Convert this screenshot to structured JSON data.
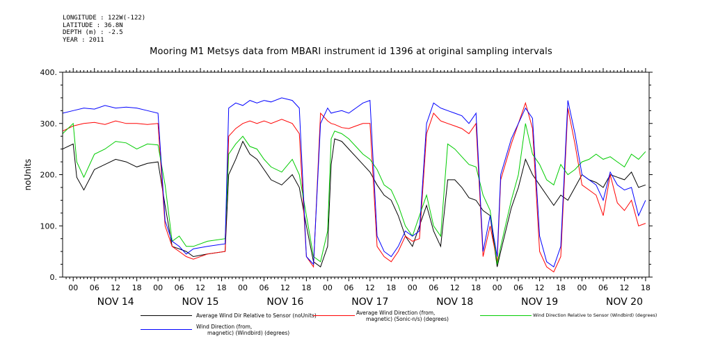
{
  "meta": {
    "longitude": "LONGITUDE : 122W(-122)",
    "latitude": "LATITUDE : 36.8N",
    "depth": "DEPTH (m) : -2.5",
    "year": "YEAR : 2011"
  },
  "chart_data": {
    "type": "line",
    "title": "Mooring M1 Metsys data from MBARI instrument id 1396 at original sampling intervals",
    "ylabel": "noUnits",
    "xlabel": "",
    "ylim": [
      0,
      400
    ],
    "yticks": [
      0,
      100,
      200,
      300,
      400
    ],
    "xlim_hours": [
      -3,
      163
    ],
    "hour_tick_labels": [
      "00",
      "06",
      "12",
      "18"
    ],
    "day_labels": [
      "NOV 14",
      "NOV 15",
      "NOV 16",
      "NOV 17",
      "NOV 18",
      "NOV 19",
      "NOV 20"
    ],
    "grid": false,
    "legend_position": "bottom",
    "series": [
      {
        "name": "Average Wind Dir Relative to Sensor (noUnits)",
        "color": "#000000",
        "points": [
          [
            -3,
            250
          ],
          [
            0,
            260
          ],
          [
            1,
            195
          ],
          [
            3,
            170
          ],
          [
            6,
            210
          ],
          [
            9,
            220
          ],
          [
            12,
            230
          ],
          [
            15,
            225
          ],
          [
            18,
            215
          ],
          [
            21,
            222
          ],
          [
            24,
            225
          ],
          [
            26,
            140
          ],
          [
            28,
            60
          ],
          [
            30,
            55
          ],
          [
            32,
            50
          ],
          [
            34,
            40
          ],
          [
            38,
            45
          ],
          [
            43,
            50
          ],
          [
            44,
            200
          ],
          [
            46,
            230
          ],
          [
            48,
            265
          ],
          [
            50,
            240
          ],
          [
            52,
            230
          ],
          [
            54,
            210
          ],
          [
            56,
            190
          ],
          [
            59,
            180
          ],
          [
            62,
            200
          ],
          [
            64,
            175
          ],
          [
            66,
            100
          ],
          [
            68,
            30
          ],
          [
            70,
            20
          ],
          [
            72,
            60
          ],
          [
            73,
            220
          ],
          [
            74,
            270
          ],
          [
            76,
            265
          ],
          [
            78,
            250
          ],
          [
            80,
            235
          ],
          [
            82,
            220
          ],
          [
            84,
            205
          ],
          [
            86,
            180
          ],
          [
            88,
            160
          ],
          [
            90,
            150
          ],
          [
            92,
            120
          ],
          [
            94,
            80
          ],
          [
            96,
            60
          ],
          [
            98,
            100
          ],
          [
            100,
            140
          ],
          [
            102,
            90
          ],
          [
            104,
            60
          ],
          [
            106,
            190
          ],
          [
            108,
            190
          ],
          [
            110,
            175
          ],
          [
            112,
            155
          ],
          [
            114,
            150
          ],
          [
            116,
            130
          ],
          [
            118,
            120
          ],
          [
            120,
            20
          ],
          [
            121,
            50
          ],
          [
            124,
            135
          ],
          [
            126,
            175
          ],
          [
            128,
            230
          ],
          [
            130,
            200
          ],
          [
            132,
            180
          ],
          [
            134,
            160
          ],
          [
            136,
            140
          ],
          [
            138,
            160
          ],
          [
            140,
            150
          ],
          [
            142,
            175
          ],
          [
            144,
            200
          ],
          [
            146,
            190
          ],
          [
            148,
            185
          ],
          [
            150,
            175
          ],
          [
            152,
            200
          ],
          [
            154,
            195
          ],
          [
            156,
            190
          ],
          [
            158,
            205
          ],
          [
            160,
            175
          ],
          [
            162,
            180
          ]
        ]
      },
      {
        "name": "Average Wind Direction (from, magnetic) (Sonic-n/s) (degrees)",
        "color": "#ff0000",
        "points": [
          [
            -3,
            285
          ],
          [
            0,
            295
          ],
          [
            3,
            300
          ],
          [
            6,
            302
          ],
          [
            9,
            298
          ],
          [
            12,
            305
          ],
          [
            15,
            300
          ],
          [
            18,
            300
          ],
          [
            21,
            298
          ],
          [
            24,
            300
          ],
          [
            26,
            100
          ],
          [
            28,
            60
          ],
          [
            30,
            50
          ],
          [
            32,
            40
          ],
          [
            34,
            35
          ],
          [
            38,
            45
          ],
          [
            43,
            50
          ],
          [
            44,
            275
          ],
          [
            46,
            290
          ],
          [
            48,
            300
          ],
          [
            50,
            305
          ],
          [
            52,
            300
          ],
          [
            54,
            305
          ],
          [
            56,
            300
          ],
          [
            59,
            308
          ],
          [
            62,
            300
          ],
          [
            64,
            280
          ],
          [
            66,
            40
          ],
          [
            68,
            20
          ],
          [
            70,
            320
          ],
          [
            72,
            305
          ],
          [
            73,
            300
          ],
          [
            74,
            298
          ],
          [
            76,
            292
          ],
          [
            78,
            290
          ],
          [
            80,
            295
          ],
          [
            82,
            300
          ],
          [
            84,
            300
          ],
          [
            86,
            60
          ],
          [
            88,
            40
          ],
          [
            90,
            30
          ],
          [
            92,
            50
          ],
          [
            94,
            80
          ],
          [
            96,
            70
          ],
          [
            98,
            75
          ],
          [
            100,
            280
          ],
          [
            102,
            320
          ],
          [
            104,
            305
          ],
          [
            106,
            300
          ],
          [
            108,
            295
          ],
          [
            110,
            290
          ],
          [
            112,
            280
          ],
          [
            114,
            300
          ],
          [
            116,
            40
          ],
          [
            118,
            100
          ],
          [
            120,
            30
          ],
          [
            121,
            190
          ],
          [
            124,
            260
          ],
          [
            126,
            300
          ],
          [
            128,
            340
          ],
          [
            130,
            290
          ],
          [
            132,
            50
          ],
          [
            134,
            20
          ],
          [
            136,
            10
          ],
          [
            138,
            40
          ],
          [
            140,
            330
          ],
          [
            142,
            260
          ],
          [
            144,
            180
          ],
          [
            146,
            170
          ],
          [
            148,
            160
          ],
          [
            150,
            120
          ],
          [
            152,
            200
          ],
          [
            154,
            145
          ],
          [
            156,
            130
          ],
          [
            158,
            150
          ],
          [
            160,
            100
          ],
          [
            162,
            105
          ]
        ]
      },
      {
        "name": "Wind Direction Relative to Sensor (Windbird) (degrees)",
        "color": "#00cc00",
        "points": [
          [
            -3,
            280
          ],
          [
            0,
            300
          ],
          [
            1,
            225
          ],
          [
            3,
            195
          ],
          [
            6,
            240
          ],
          [
            9,
            250
          ],
          [
            12,
            265
          ],
          [
            15,
            262
          ],
          [
            18,
            250
          ],
          [
            21,
            260
          ],
          [
            24,
            258
          ],
          [
            26,
            180
          ],
          [
            28,
            70
          ],
          [
            30,
            80
          ],
          [
            32,
            60
          ],
          [
            34,
            60
          ],
          [
            38,
            70
          ],
          [
            43,
            75
          ],
          [
            44,
            240
          ],
          [
            46,
            260
          ],
          [
            48,
            275
          ],
          [
            50,
            255
          ],
          [
            52,
            250
          ],
          [
            54,
            230
          ],
          [
            56,
            215
          ],
          [
            59,
            205
          ],
          [
            62,
            230
          ],
          [
            64,
            200
          ],
          [
            66,
            120
          ],
          [
            68,
            40
          ],
          [
            70,
            30
          ],
          [
            72,
            90
          ],
          [
            73,
            270
          ],
          [
            74,
            285
          ],
          [
            76,
            280
          ],
          [
            78,
            270
          ],
          [
            80,
            255
          ],
          [
            82,
            240
          ],
          [
            84,
            230
          ],
          [
            86,
            210
          ],
          [
            88,
            180
          ],
          [
            90,
            170
          ],
          [
            92,
            140
          ],
          [
            94,
            100
          ],
          [
            96,
            80
          ],
          [
            98,
            120
          ],
          [
            100,
            160
          ],
          [
            102,
            100
          ],
          [
            104,
            80
          ],
          [
            106,
            260
          ],
          [
            108,
            250
          ],
          [
            110,
            235
          ],
          [
            112,
            220
          ],
          [
            114,
            215
          ],
          [
            116,
            160
          ],
          [
            118,
            130
          ],
          [
            120,
            25
          ],
          [
            121,
            60
          ],
          [
            124,
            150
          ],
          [
            126,
            200
          ],
          [
            128,
            300
          ],
          [
            130,
            240
          ],
          [
            132,
            220
          ],
          [
            134,
            190
          ],
          [
            136,
            180
          ],
          [
            138,
            220
          ],
          [
            140,
            200
          ],
          [
            142,
            210
          ],
          [
            144,
            225
          ],
          [
            146,
            230
          ],
          [
            148,
            240
          ],
          [
            150,
            230
          ],
          [
            152,
            235
          ],
          [
            154,
            225
          ],
          [
            156,
            215
          ],
          [
            158,
            240
          ],
          [
            160,
            230
          ],
          [
            162,
            245
          ]
        ]
      },
      {
        "name": "Wind Direction (from, magnetic) (Windbird) (degrees)",
        "color": "#0000ff",
        "points": [
          [
            -3,
            320
          ],
          [
            0,
            325
          ],
          [
            3,
            330
          ],
          [
            6,
            328
          ],
          [
            9,
            335
          ],
          [
            12,
            330
          ],
          [
            15,
            332
          ],
          [
            18,
            330
          ],
          [
            21,
            325
          ],
          [
            24,
            320
          ],
          [
            26,
            110
          ],
          [
            28,
            70
          ],
          [
            30,
            60
          ],
          [
            32,
            45
          ],
          [
            34,
            55
          ],
          [
            38,
            60
          ],
          [
            43,
            65
          ],
          [
            44,
            330
          ],
          [
            46,
            340
          ],
          [
            48,
            335
          ],
          [
            50,
            345
          ],
          [
            52,
            340
          ],
          [
            54,
            345
          ],
          [
            56,
            342
          ],
          [
            59,
            350
          ],
          [
            62,
            345
          ],
          [
            64,
            330
          ],
          [
            66,
            40
          ],
          [
            68,
            25
          ],
          [
            70,
            300
          ],
          [
            72,
            330
          ],
          [
            73,
            320
          ],
          [
            74,
            322
          ],
          [
            76,
            325
          ],
          [
            78,
            320
          ],
          [
            80,
            330
          ],
          [
            82,
            340
          ],
          [
            84,
            345
          ],
          [
            86,
            80
          ],
          [
            88,
            50
          ],
          [
            90,
            40
          ],
          [
            92,
            60
          ],
          [
            94,
            90
          ],
          [
            96,
            80
          ],
          [
            98,
            90
          ],
          [
            100,
            300
          ],
          [
            102,
            340
          ],
          [
            104,
            330
          ],
          [
            106,
            325
          ],
          [
            108,
            320
          ],
          [
            110,
            315
          ],
          [
            112,
            300
          ],
          [
            114,
            320
          ],
          [
            116,
            50
          ],
          [
            118,
            120
          ],
          [
            120,
            40
          ],
          [
            121,
            200
          ],
          [
            124,
            270
          ],
          [
            126,
            300
          ],
          [
            128,
            330
          ],
          [
            130,
            310
          ],
          [
            132,
            80
          ],
          [
            134,
            30
          ],
          [
            136,
            20
          ],
          [
            138,
            60
          ],
          [
            140,
            345
          ],
          [
            142,
            280
          ],
          [
            144,
            200
          ],
          [
            146,
            190
          ],
          [
            148,
            180
          ],
          [
            150,
            150
          ],
          [
            152,
            205
          ],
          [
            154,
            180
          ],
          [
            156,
            170
          ],
          [
            158,
            175
          ],
          [
            160,
            120
          ],
          [
            162,
            150
          ]
        ]
      }
    ],
    "legend": {
      "black_text": "Average Wind Dir Relative to Sensor (noUnits)",
      "red_text_1": "Average Wind Direction (from,",
      "red_text_2": "magnetic) (Sonic-n/s) (degrees)",
      "green_text": "Wind Direction Relative to Sensor (Windbird) (degrees)",
      "blue_text_1": "Wind Direction (from,",
      "blue_text_2": "magnetic) (Windbird) (degrees)"
    }
  }
}
